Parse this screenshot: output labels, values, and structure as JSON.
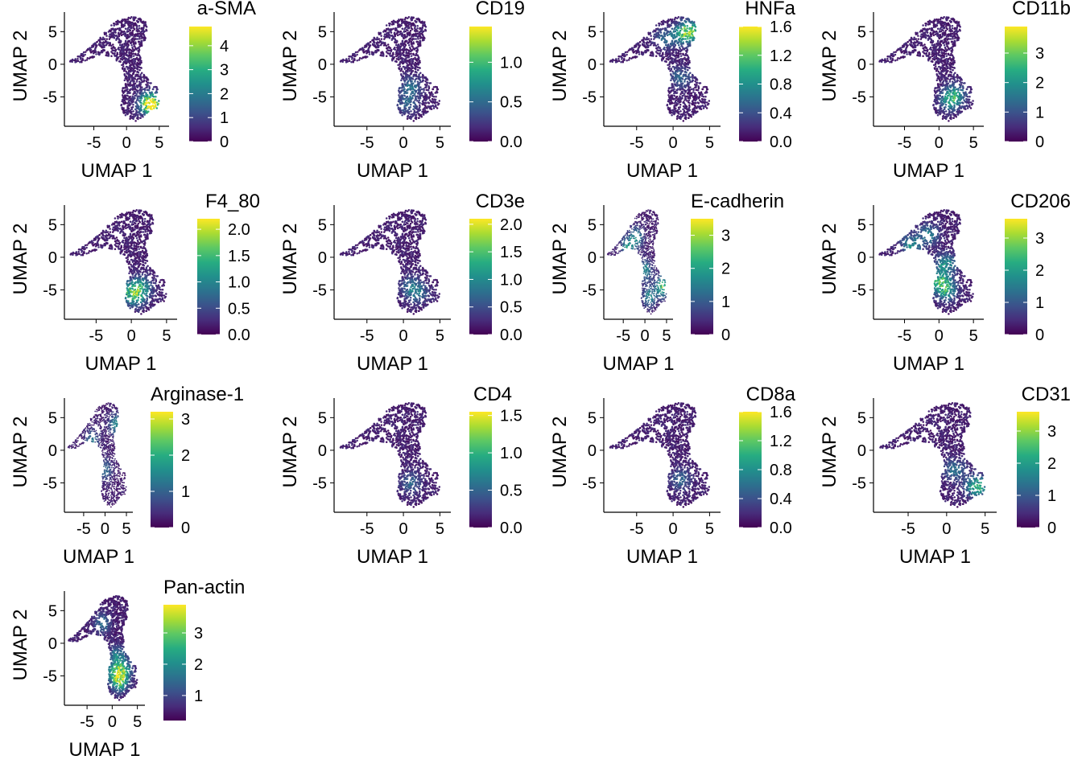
{
  "chart_data": [
    {
      "type": "scatter",
      "title": "a-SMA",
      "xlabel": "UMAP 1",
      "ylabel": "UMAP 2",
      "xticks": [
        -5,
        0,
        5
      ],
      "yticks": [
        5,
        0,
        -5
      ],
      "xlim": [
        -9.5,
        6.5
      ],
      "ylim": [
        -9.5,
        8
      ],
      "colorbar": {
        "min": 0,
        "max": 4.8,
        "ticks": [
          "4",
          "3",
          "2",
          "1",
          "0"
        ],
        "tick_values": [
          4,
          3,
          2,
          1,
          0
        ]
      },
      "hotspots": [
        {
          "x": 3.9,
          "y": -6.3,
          "level": 0.9
        },
        {
          "x": 3.4,
          "y": -5.8,
          "level": 0.6
        }
      ]
    },
    {
      "type": "scatter",
      "title": "CD19",
      "xlabel": "UMAP 1",
      "ylabel": "UMAP 2",
      "xticks": [
        -5,
        0,
        5
      ],
      "yticks": [
        5,
        0,
        -5
      ],
      "xlim": [
        -9.5,
        6.5
      ],
      "ylim": [
        -9.5,
        8
      ],
      "colorbar": {
        "min": 0,
        "max": 1.45,
        "ticks": [
          "1.0",
          "0.5",
          "0.0"
        ],
        "tick_values": [
          1.0,
          0.5,
          0.0
        ]
      },
      "hotspots": [
        {
          "x": 1.0,
          "y": -3.5,
          "level": 0.35
        },
        {
          "x": 0.5,
          "y": -6,
          "level": 0.3
        }
      ]
    },
    {
      "type": "scatter",
      "title": "HNFa",
      "xlabel": "UMAP 1",
      "ylabel": "UMAP 2",
      "xticks": [
        -5,
        0,
        5
      ],
      "yticks": [
        5,
        0,
        -5
      ],
      "xlim": [
        -9.5,
        6.5
      ],
      "ylim": [
        -9.5,
        8
      ],
      "colorbar": {
        "min": 0,
        "max": 1.6,
        "ticks": [
          "1.6",
          "1.2",
          "0.8",
          "0.4",
          "0.0"
        ],
        "tick_values": [
          1.6,
          1.2,
          0.8,
          0.4,
          0.0
        ]
      },
      "hotspots": [
        {
          "x": 2.4,
          "y": 5.2,
          "level": 0.7
        },
        {
          "x": 1.5,
          "y": 4.5,
          "level": 0.5
        },
        {
          "x": -1,
          "y": 4,
          "level": 0.3
        },
        {
          "x": 1,
          "y": -2,
          "level": 0.3
        }
      ]
    },
    {
      "type": "scatter",
      "title": "CD11b",
      "xlabel": "UMAP 1",
      "ylabel": "UMAP 2",
      "xticks": [
        -5,
        0,
        5
      ],
      "yticks": [
        5,
        0,
        -5
      ],
      "xlim": [
        -9.5,
        6.5
      ],
      "ylim": [
        -9.5,
        8
      ],
      "colorbar": {
        "min": 0,
        "max": 3.9,
        "ticks": [
          "3",
          "2",
          "1",
          "0"
        ],
        "tick_values": [
          3,
          2,
          1,
          0
        ]
      },
      "hotspots": [
        {
          "x": 1.6,
          "y": -5.5,
          "level": 0.55
        },
        {
          "x": 2.5,
          "y": -4.5,
          "level": 0.4
        }
      ]
    },
    {
      "type": "scatter",
      "title": "F4_80",
      "xlabel": "UMAP 1",
      "ylabel": "UMAP 2",
      "xticks": [
        -5,
        0,
        5
      ],
      "yticks": [
        5,
        0,
        -5
      ],
      "xlim": [
        -9.5,
        6.5
      ],
      "ylim": [
        -9.5,
        8
      ],
      "colorbar": {
        "min": 0,
        "max": 2.2,
        "ticks": [
          "2.0",
          "1.5",
          "1.0",
          "0.5",
          "0.0"
        ],
        "tick_values": [
          2.0,
          1.5,
          1.0,
          0.5,
          0.0
        ]
      },
      "hotspots": [
        {
          "x": 0.5,
          "y": -6,
          "level": 0.55
        },
        {
          "x": 1.5,
          "y": -4.5,
          "level": 0.45
        },
        {
          "x": 0,
          "y": -5,
          "level": 0.4
        }
      ]
    },
    {
      "type": "scatter",
      "title": "CD3e",
      "xlabel": "UMAP 1",
      "ylabel": "UMAP 2",
      "xticks": [
        -5,
        0,
        5
      ],
      "yticks": [
        5,
        0,
        -5
      ],
      "xlim": [
        -9.5,
        6.5
      ],
      "ylim": [
        -9.5,
        8
      ],
      "colorbar": {
        "min": 0,
        "max": 2.1,
        "ticks": [
          "2.0",
          "1.5",
          "1.0",
          "0.5",
          "0.0"
        ],
        "tick_values": [
          2.0,
          1.5,
          1.0,
          0.5,
          0.0
        ]
      },
      "hotspots": [
        {
          "x": 1,
          "y": -4.5,
          "level": 0.3
        },
        {
          "x": 2,
          "y": -5.5,
          "level": 0.3
        }
      ]
    },
    {
      "type": "scatter",
      "title": "E-cadherin",
      "xlabel": "UMAP 1",
      "ylabel": "UMAP 2",
      "xticks": [
        -5,
        0,
        5
      ],
      "yticks": [
        5,
        0,
        -5
      ],
      "xlim": [
        -9.5,
        6.5
      ],
      "ylim": [
        -9.5,
        8
      ],
      "colorbar": {
        "min": 0,
        "max": 3.5,
        "ticks": [
          "3",
          "2",
          "1",
          "0"
        ],
        "tick_values": [
          3,
          2,
          1,
          0
        ]
      },
      "hotspots": [
        {
          "x": 4,
          "y": -4.5,
          "level": 0.8
        },
        {
          "x": -4,
          "y": 1.5,
          "level": 0.55
        },
        {
          "x": -2,
          "y": 3,
          "level": 0.5
        },
        {
          "x": 0,
          "y": -2,
          "level": 0.5
        },
        {
          "x": 1,
          "y": -6,
          "level": 0.5
        }
      ]
    },
    {
      "type": "scatter",
      "title": "CD206",
      "xlabel": "UMAP 1",
      "ylabel": "UMAP 2",
      "xticks": [
        -5,
        0,
        5
      ],
      "yticks": [
        5,
        0,
        -5
      ],
      "xlim": [
        -9.5,
        6.5
      ],
      "ylim": [
        -9.5,
        8
      ],
      "colorbar": {
        "min": 0,
        "max": 3.6,
        "ticks": [
          "3",
          "2",
          "1",
          "0"
        ],
        "tick_values": [
          3,
          2,
          1,
          0
        ]
      },
      "hotspots": [
        {
          "x": 1,
          "y": -5,
          "level": 0.65
        },
        {
          "x": 0,
          "y": -3.5,
          "level": 0.6
        },
        {
          "x": -4,
          "y": 1.8,
          "level": 0.5
        },
        {
          "x": 1,
          "y": -1,
          "level": 0.5
        },
        {
          "x": -1.5,
          "y": 3.5,
          "level": 0.4
        }
      ]
    },
    {
      "type": "scatter",
      "title": "Arginase-1",
      "xlabel": "UMAP 1",
      "ylabel": "UMAP 2",
      "xticks": [
        -5,
        0,
        5
      ],
      "yticks": [
        5,
        0,
        -5
      ],
      "xlim": [
        -9.5,
        6.5
      ],
      "ylim": [
        -9.5,
        8
      ],
      "colorbar": {
        "min": 0,
        "max": 3.2,
        "ticks": [
          "3",
          "2",
          "1",
          "0"
        ],
        "tick_values": [
          3,
          2,
          1,
          0
        ]
      },
      "hotspots": [
        {
          "x": 2.5,
          "y": 4,
          "level": 0.5
        },
        {
          "x": -3,
          "y": 1.5,
          "level": 0.4
        },
        {
          "x": 0,
          "y": -3,
          "level": 0.35
        }
      ]
    },
    {
      "type": "scatter",
      "title": "CD4",
      "xlabel": "UMAP 1",
      "ylabel": "UMAP 2",
      "xticks": [
        -5,
        0,
        5
      ],
      "yticks": [
        5,
        0,
        -5
      ],
      "xlim": [
        -9.5,
        6.5
      ],
      "ylim": [
        -9.5,
        8
      ],
      "colorbar": {
        "min": 0,
        "max": 1.55,
        "ticks": [
          "1.5",
          "1.0",
          "0.5",
          "0.0"
        ],
        "tick_values": [
          1.5,
          1.0,
          0.5,
          0.0
        ]
      },
      "hotspots": [
        {
          "x": 1,
          "y": -5,
          "level": 0.3
        }
      ]
    },
    {
      "type": "scatter",
      "title": "CD8a",
      "xlabel": "UMAP 1",
      "ylabel": "UMAP 2",
      "xticks": [
        -5,
        0,
        5
      ],
      "yticks": [
        5,
        0,
        -5
      ],
      "xlim": [
        -9.5,
        6.5
      ],
      "ylim": [
        -9.5,
        8
      ],
      "colorbar": {
        "min": 0,
        "max": 1.6,
        "ticks": [
          "1.6",
          "1.2",
          "0.8",
          "0.4",
          "0.0"
        ],
        "tick_values": [
          1.6,
          1.2,
          0.8,
          0.4,
          0.0
        ]
      },
      "hotspots": [
        {
          "x": 1,
          "y": -4.5,
          "level": 0.3
        }
      ]
    },
    {
      "type": "scatter",
      "title": "CD31",
      "xlabel": "UMAP 1",
      "ylabel": "UMAP 2",
      "xticks": [
        -5,
        0,
        5
      ],
      "yticks": [
        5,
        0,
        -5
      ],
      "xlim": [
        -9.5,
        6.5
      ],
      "ylim": [
        -9.5,
        8
      ],
      "colorbar": {
        "min": 0,
        "max": 3.6,
        "ticks": [
          "3",
          "2",
          "1",
          "0"
        ],
        "tick_values": [
          3,
          2,
          1,
          0
        ]
      },
      "hotspots": [
        {
          "x": 4,
          "y": -5.5,
          "level": 0.75
        },
        {
          "x": 1,
          "y": -3,
          "level": 0.35
        }
      ]
    },
    {
      "type": "scatter",
      "title": "Pan-actin",
      "xlabel": "UMAP 1",
      "ylabel": "UMAP 2",
      "xticks": [
        -5,
        0,
        5
      ],
      "yticks": [
        5,
        0,
        -5
      ],
      "xlim": [
        -9.5,
        6.5
      ],
      "ylim": [
        -9.5,
        8
      ],
      "colorbar": {
        "min": 0.2,
        "max": 3.9,
        "ticks": [
          "3",
          "2",
          "1"
        ],
        "tick_values": [
          3,
          2,
          1
        ]
      },
      "hotspots": [
        {
          "x": 1.5,
          "y": -5.8,
          "level": 0.8
        },
        {
          "x": 0.5,
          "y": -4.5,
          "level": 0.65
        },
        {
          "x": 2.5,
          "y": -4,
          "level": 0.55
        },
        {
          "x": 1,
          "y": -2,
          "level": 0.45
        },
        {
          "x": -2,
          "y": 3,
          "level": 0.35
        }
      ]
    }
  ]
}
